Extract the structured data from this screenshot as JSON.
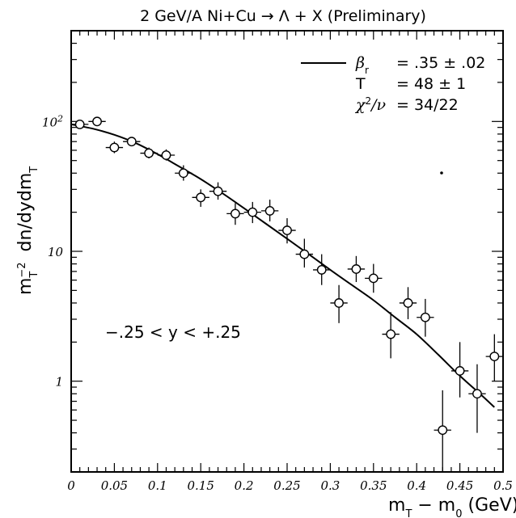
{
  "chart_data": {
    "type": "scatter",
    "title": "2 GeV/A Ni+Cu → Λ + X (Preliminary)",
    "xlabel": "m_T − m_0 (GeV)",
    "ylabel": "m_T^{-2} dn/dydm_T",
    "xlim": [
      0,
      0.5
    ],
    "ylim": [
      0.2,
      500
    ],
    "yscale": "log",
    "grid": false,
    "x_tick_labels": [
      "0",
      "0.05",
      "0.1",
      "0.15",
      "0.2",
      "0.25",
      "0.3",
      "0.35",
      "0.4",
      "0.45",
      "0.5"
    ],
    "y_tick_labels": [
      {
        "value": 100,
        "base": "10",
        "exp": "2"
      },
      {
        "value": 10,
        "base": "10",
        "exp": ""
      },
      {
        "value": 1,
        "base": "1",
        "exp": ""
      }
    ],
    "legend": {
      "placement": "top-right",
      "rows": [
        {
          "sym": "β",
          "sub": "r",
          "sup": "",
          "rest": "",
          "eq": "= .35 ± .02"
        },
        {
          "sym": "T",
          "sub": "",
          "sup": "",
          "rest": "",
          "eq": "= 48 ± 1"
        },
        {
          "sym": "χ",
          "sub": "",
          "sup": "2",
          "rest": "/ν",
          "eq": "= 34/22"
        }
      ]
    },
    "annotation": "−.25 < y < +.25",
    "points": [
      {
        "x": 0.01,
        "y": 95,
        "ylo": 95,
        "yhi": 95
      },
      {
        "x": 0.03,
        "y": 100,
        "ylo": 100,
        "yhi": 100
      },
      {
        "x": 0.05,
        "y": 63,
        "ylo": 57,
        "yhi": 70
      },
      {
        "x": 0.07,
        "y": 70,
        "ylo": 65,
        "yhi": 75
      },
      {
        "x": 0.09,
        "y": 57,
        "ylo": 52,
        "yhi": 63
      },
      {
        "x": 0.11,
        "y": 55,
        "ylo": 50,
        "yhi": 61
      },
      {
        "x": 0.13,
        "y": 40,
        "ylo": 35,
        "yhi": 46
      },
      {
        "x": 0.15,
        "y": 26,
        "ylo": 22,
        "yhi": 30
      },
      {
        "x": 0.17,
        "y": 29,
        "ylo": 25,
        "yhi": 34
      },
      {
        "x": 0.19,
        "y": 19.5,
        "ylo": 16,
        "yhi": 23.5
      },
      {
        "x": 0.21,
        "y": 20,
        "ylo": 16.5,
        "yhi": 24
      },
      {
        "x": 0.23,
        "y": 20.5,
        "ylo": 17,
        "yhi": 25
      },
      {
        "x": 0.25,
        "y": 14.5,
        "ylo": 11.5,
        "yhi": 18
      },
      {
        "x": 0.27,
        "y": 9.5,
        "ylo": 7.5,
        "yhi": 12.5
      },
      {
        "x": 0.29,
        "y": 7.2,
        "ylo": 5.5,
        "yhi": 9.5
      },
      {
        "x": 0.31,
        "y": 4,
        "ylo": 2.8,
        "yhi": 5.5
      },
      {
        "x": 0.33,
        "y": 7.3,
        "ylo": 5.8,
        "yhi": 9.2
      },
      {
        "x": 0.35,
        "y": 6.2,
        "ylo": 4.8,
        "yhi": 8
      },
      {
        "x": 0.37,
        "y": 2.3,
        "ylo": 1.5,
        "yhi": 3.4
      },
      {
        "x": 0.39,
        "y": 4,
        "ylo": 3,
        "yhi": 5.3
      },
      {
        "x": 0.41,
        "y": 3.1,
        "ylo": 2.2,
        "yhi": 4.3
      },
      {
        "x": 0.43,
        "y": 0.42,
        "ylo": 0.2,
        "yhi": 0.85
      },
      {
        "x": 0.45,
        "y": 1.2,
        "ylo": 0.75,
        "yhi": 2.0
      },
      {
        "x": 0.47,
        "y": 0.8,
        "ylo": 0.4,
        "yhi": 1.35
      },
      {
        "x": 0.49,
        "y": 1.55,
        "ylo": 1.0,
        "yhi": 2.3
      }
    ],
    "xerr": 0.01,
    "fit_curve": {
      "x": [
        0.0,
        0.025,
        0.05,
        0.075,
        0.1,
        0.125,
        0.15,
        0.175,
        0.2,
        0.225,
        0.25,
        0.275,
        0.3,
        0.325,
        0.35,
        0.375,
        0.4,
        0.425,
        0.45,
        0.475,
        0.49
      ],
      "y": [
        95,
        88,
        79,
        68,
        56,
        45,
        36,
        28,
        21.5,
        16.4,
        12.5,
        9.5,
        7.2,
        5.5,
        4.2,
        3.1,
        2.3,
        1.6,
        1.1,
        0.78,
        0.63
      ]
    }
  }
}
